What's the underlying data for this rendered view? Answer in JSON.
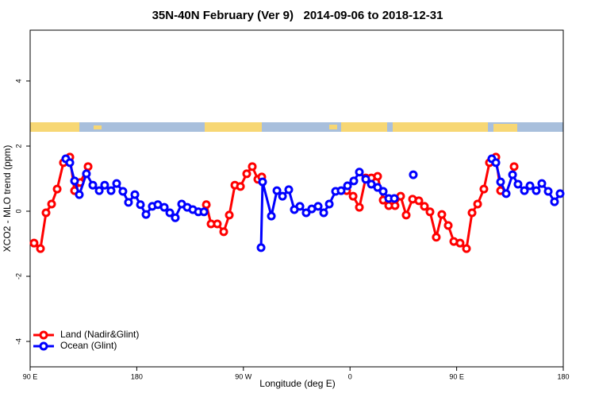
{
  "chart_data": {
    "type": "line",
    "title": "35N-40N February (Ver 9)   2014-09-06 to 2018-12-31",
    "x_label": "Longitude (deg E)",
    "y_label": "XCO2 - MLO trend (ppm)",
    "xlim": [
      90,
      540
    ],
    "xticks": [
      {
        "value": 90,
        "label": "90 E"
      },
      {
        "value": 180,
        "label": "180"
      },
      {
        "value": 270,
        "label": "90 W"
      },
      {
        "value": 360,
        "label": "0"
      },
      {
        "value": 450,
        "label": "90 E"
      },
      {
        "value": 540,
        "label": "180"
      }
    ],
    "ylim": [
      -4.78,
      5.56
    ],
    "yticks": [
      -4,
      -2,
      0,
      2,
      4
    ],
    "legend": "bottom-left",
    "series": [
      {
        "name": "Land (Nadir&Glint)",
        "color": "#ff0000",
        "x": [
          93.3,
          98.7,
          103.4,
          108.1,
          112.8,
          118.1,
          123.5,
          127.5,
          132.2,
          138.9,
          null,
          238.7,
          242.7,
          248,
          253.4,
          258.1,
          262.8,
          267.5,
          272.8,
          277.5,
          282.2,
          285.5,
          null,
          357.2,
          362.6,
          367.9,
          373.3,
          378,
          383.3,
          388,
          392.7,
          398,
          402.7,
          407.4,
          412.8,
          418.1,
          422.8,
          427.5,
          432.8,
          437.5,
          442.9,
          447.6,
          452.9,
          458.3,
          463,
          467.7,
          473,
          477.7,
          483.1,
          487.1,
          null,
          498.5
        ],
        "values": [
          -0.98,
          -1.15,
          -0.05,
          0.22,
          0.68,
          1.49,
          1.66,
          0.63,
          0.88,
          1.37,
          null,
          0.2,
          -0.39,
          -0.39,
          -0.63,
          -0.12,
          0.8,
          0.76,
          1.15,
          1.37,
          0.98,
          1.05,
          null,
          0.63,
          0.46,
          0.12,
          1.02,
          1.02,
          1.07,
          0.34,
          0.17,
          0.17,
          0.46,
          -0.12,
          0.37,
          0.32,
          0.15,
          -0.02,
          -0.8,
          -0.1,
          -0.44,
          -0.93,
          -0.98,
          -1.15,
          -0.05,
          0.22,
          0.68,
          1.49,
          1.66,
          0.63,
          null,
          1.37
        ]
      },
      {
        "name": "Ocean (Glint)",
        "color": "#0000ff",
        "x": [
          120.1,
          123.5,
          127.5,
          131.5,
          137.5,
          142.9,
          148.3,
          152.9,
          158.3,
          163,
          168.3,
          173,
          178.4,
          183.1,
          187.8,
          193.1,
          197.8,
          203.2,
          207.9,
          212.5,
          217.9,
          222.6,
          227.3,
          232,
          236.7,
          null,
          284.9,
          286.2,
          293.6,
          298.3,
          303,
          308.3,
          313,
          317.7,
          323,
          327.7,
          333.1,
          337.8,
          342.5,
          347.8,
          352.5,
          357.9,
          363.2,
          367.9,
          373.3,
          378,
          383.3,
          388,
          392.7,
          397.4,
          null,
          413.4,
          null,
          479.7,
          483.1,
          487.1,
          491.8,
          497.2,
          501.8,
          507.2,
          511.9,
          517.2,
          521.9,
          527.3,
          532.6,
          537.3
        ],
        "values": [
          1.61,
          1.49,
          0.93,
          0.51,
          1.15,
          0.8,
          0.63,
          0.8,
          0.63,
          0.85,
          0.61,
          0.27,
          0.51,
          0.2,
          -0.1,
          0.15,
          0.2,
          0.12,
          -0.05,
          -0.2,
          0.22,
          0.12,
          0.05,
          -0.02,
          -0.02,
          null,
          -1.12,
          0.9,
          -0.15,
          0.63,
          0.46,
          0.66,
          0.05,
          0.15,
          -0.05,
          0.07,
          0.15,
          -0.05,
          0.22,
          0.61,
          0.63,
          0.78,
          0.93,
          1.2,
          0.98,
          0.83,
          0.73,
          0.61,
          0.39,
          0.39,
          null,
          1.12,
          null,
          1.61,
          1.49,
          0.9,
          0.54,
          1.12,
          0.83,
          0.63,
          0.78,
          0.63,
          0.85,
          0.61,
          0.29,
          0.54
        ]
      }
    ]
  }
}
